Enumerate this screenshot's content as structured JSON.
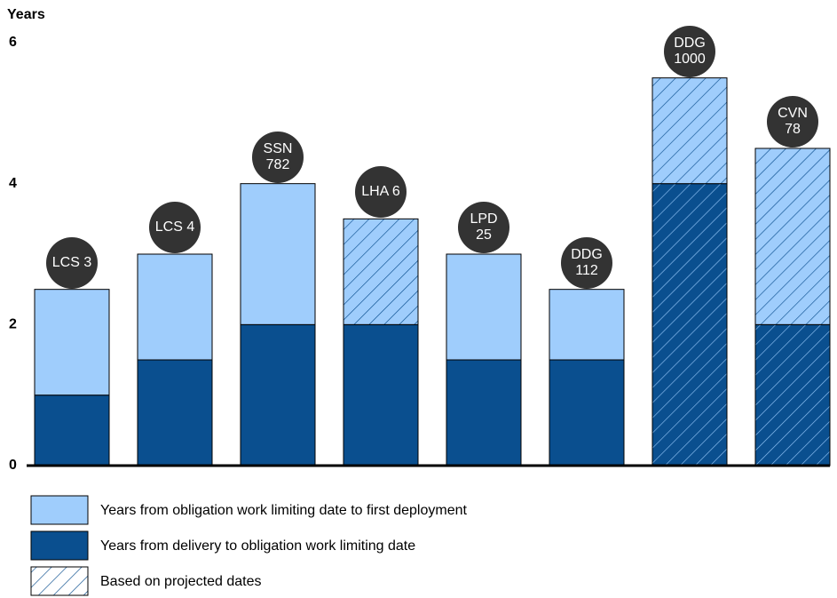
{
  "chart_data": {
    "type": "stacked_bar",
    "y_label": "Years",
    "categories": [
      "LCS 3",
      "LCS 4",
      "SSN\n782",
      "LHA 6",
      "LPD\n25",
      "DDG\n112",
      "DDG\n1000",
      "CVN\n78"
    ],
    "series": [
      {
        "name": "Years from delivery to obligation work limiting date",
        "color": "#0a4f8f",
        "hatch_color": "#8fc2f5",
        "values": [
          1,
          1.5,
          2,
          2,
          1.5,
          1.5,
          4,
          2
        ],
        "hatched": [
          false,
          false,
          false,
          false,
          false,
          false,
          true,
          true
        ]
      },
      {
        "name": "Years from obligation work limiting date to first deployment",
        "color": "#9fcdfc",
        "hatch_color": "#0a4f8f",
        "values": [
          1.5,
          1.5,
          2,
          1.5,
          1.5,
          1,
          1.5,
          2.5
        ],
        "hatched": [
          false,
          false,
          false,
          true,
          false,
          false,
          true,
          true
        ]
      }
    ],
    "projected_label": "Based on projected dates",
    "ylim": [
      0,
      6
    ],
    "yticks": [
      0,
      2,
      4,
      6
    ],
    "grid": false
  }
}
